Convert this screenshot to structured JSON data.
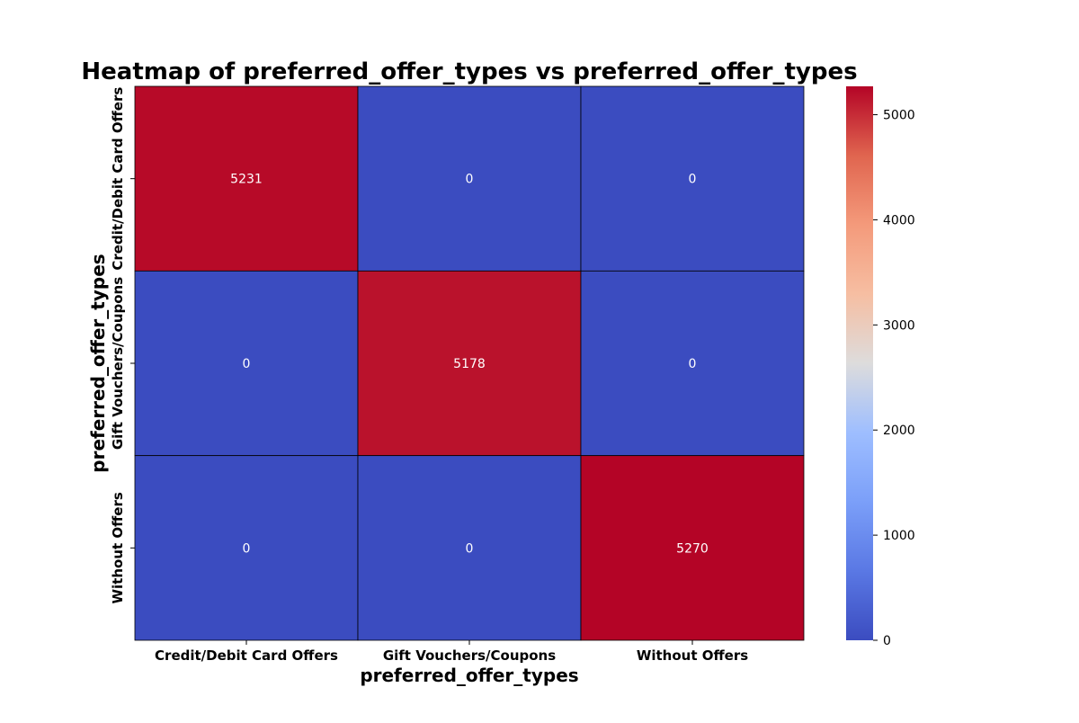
{
  "chart_data": {
    "type": "heatmap",
    "title": "Heatmap of preferred_offer_types vs preferred_offer_types",
    "xlabel": "preferred_offer_types",
    "ylabel": "preferred_offer_types",
    "x_categories": [
      "Credit/Debit Card Offers",
      "Gift Vouchers/Coupons",
      "Without Offers"
    ],
    "y_categories": [
      "Credit/Debit Card Offers",
      "Gift Vouchers/Coupons",
      "Without Offers"
    ],
    "values": [
      [
        5231,
        0,
        0
      ],
      [
        0,
        5178,
        0
      ],
      [
        0,
        0,
        5270
      ]
    ],
    "colormap": "coolwarm",
    "colorbar": {
      "min": 0,
      "max": 5270,
      "ticks": [
        0,
        1000,
        2000,
        3000,
        4000,
        5000
      ]
    },
    "annotations": true,
    "cell_border_color": "#000000"
  }
}
